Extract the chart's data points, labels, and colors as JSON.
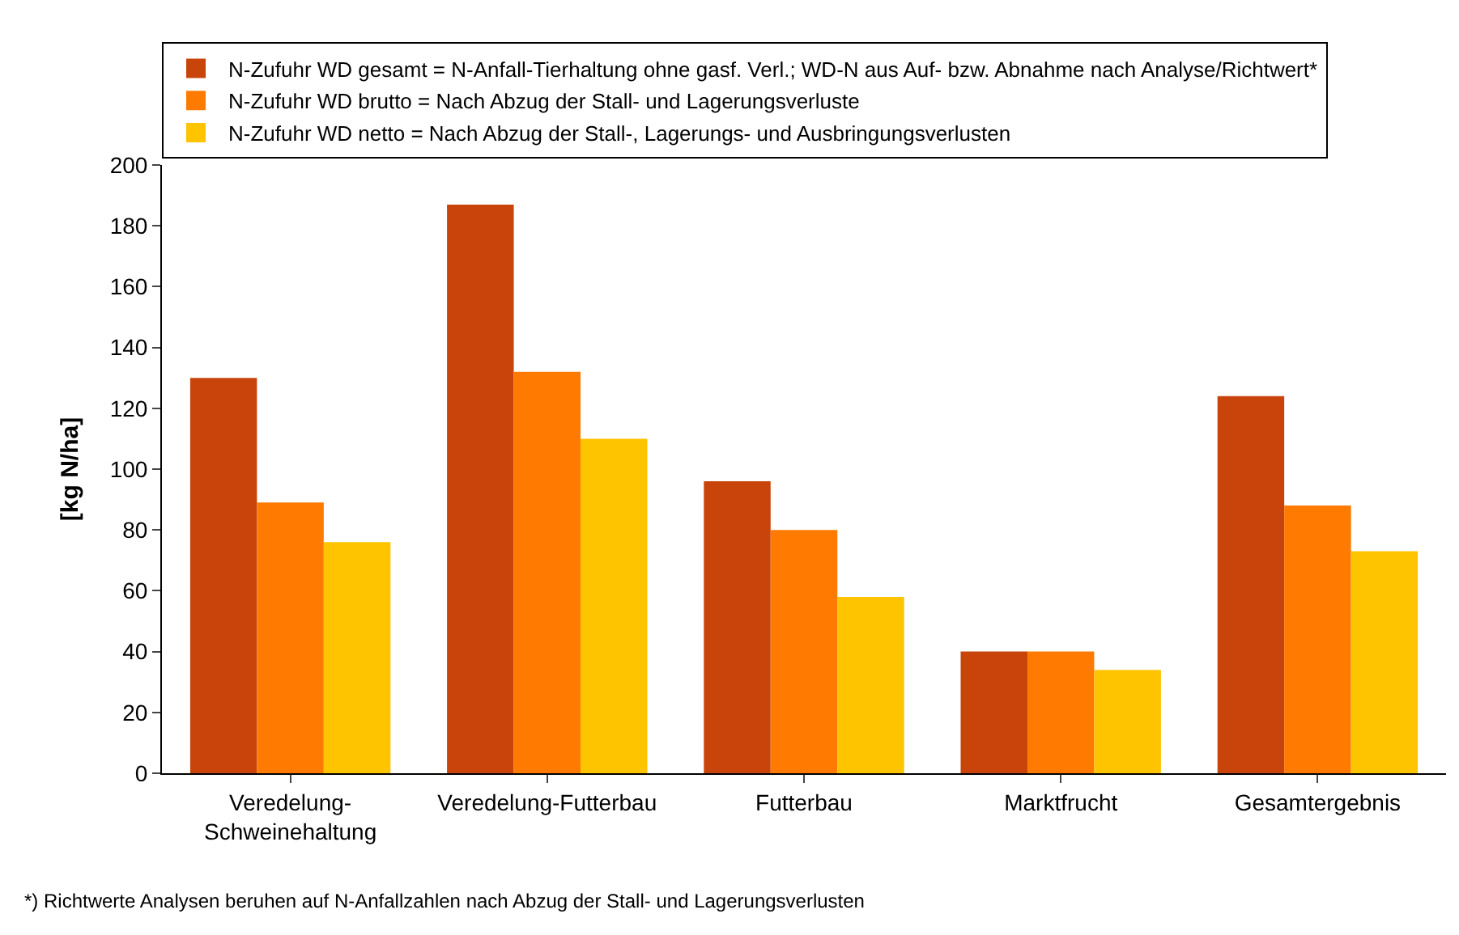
{
  "chart_data": {
    "type": "bar",
    "ylabel": "[kg N/ha]",
    "categories": [
      "Veredelung-\nSchweinehaltung",
      "Veredelung-Futterbau",
      "Futterbau",
      "Marktfrucht",
      "Gesamtergebnis"
    ],
    "series": [
      {
        "name": "N-Zufuhr WD gesamt = N-Anfall-Tierhaltung ohne gasf. Verl.; WD-N aus Auf- bzw. Abnahme nach Analyse/Richtwert*",
        "color": "#c8440a",
        "values": [
          130,
          187,
          96,
          40,
          124
        ]
      },
      {
        "name": "N-Zufuhr WD brutto = Nach Abzug der Stall- und Lagerungsverluste",
        "color": "#ff7a00",
        "values": [
          89,
          132,
          80,
          40,
          88
        ]
      },
      {
        "name": "N-Zufuhr WD netto = Nach Abzug der Stall-, Lagerungs- und Ausbringungsverlusten",
        "color": "#ffc400",
        "values": [
          76,
          110,
          58,
          34,
          73
        ]
      }
    ],
    "ylim": [
      0,
      200
    ],
    "yticks": [
      0,
      20,
      40,
      60,
      80,
      100,
      120,
      140,
      160,
      180,
      200
    ],
    "legend": "top",
    "annotations": [
      "*) Richtwerte Analysen beruhen auf N-Anfallzahlen nach Abzug der Stall- und Lagerungsverlusten"
    ]
  }
}
